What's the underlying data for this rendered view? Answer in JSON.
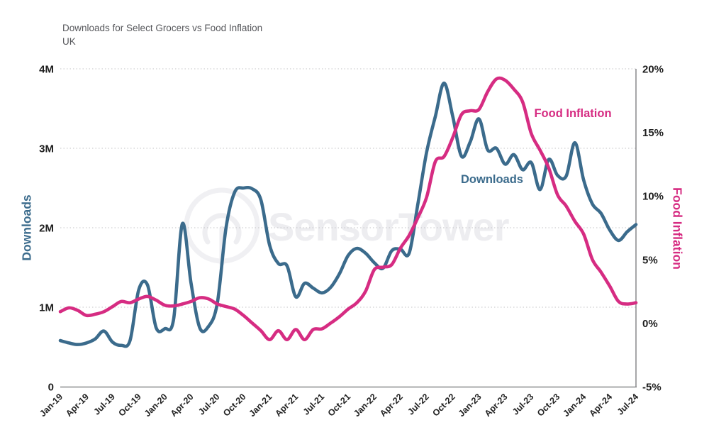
{
  "header": {
    "title": "Downloads for Select Grocers vs Food Inflation",
    "subtitle": "UK"
  },
  "watermark": {
    "text": "SensorTower",
    "logo": "circle-tower-icon"
  },
  "chart_data": {
    "type": "line",
    "x": [
      "Jan-19",
      "Feb-19",
      "Mar-19",
      "Apr-19",
      "May-19",
      "Jun-19",
      "Jul-19",
      "Aug-19",
      "Sep-19",
      "Oct-19",
      "Nov-19",
      "Dec-19",
      "Jan-20",
      "Feb-20",
      "Mar-20",
      "Apr-20",
      "May-20",
      "Jun-20",
      "Jul-20",
      "Aug-20",
      "Sep-20",
      "Oct-20",
      "Nov-20",
      "Dec-20",
      "Jan-21",
      "Feb-21",
      "Mar-21",
      "Apr-21",
      "May-21",
      "Jun-21",
      "Jul-21",
      "Aug-21",
      "Sep-21",
      "Oct-21",
      "Nov-21",
      "Dec-21",
      "Jan-22",
      "Feb-22",
      "Mar-22",
      "Apr-22",
      "May-22",
      "Jun-22",
      "Jul-22",
      "Aug-22",
      "Sep-22",
      "Oct-22",
      "Nov-22",
      "Dec-22",
      "Jan-23",
      "Feb-23",
      "Mar-23",
      "Apr-23",
      "May-23",
      "Jun-23",
      "Jul-23",
      "Aug-23",
      "Sep-23",
      "Oct-23",
      "Nov-23",
      "Dec-23",
      "Jan-24",
      "Feb-24",
      "Mar-24",
      "Apr-24",
      "May-24",
      "Jun-24",
      "Jul-24"
    ],
    "x_tick_every": 3,
    "series": [
      {
        "name": "Downloads",
        "axis": "left",
        "unit": "millions of downloads",
        "color": "#3b6b8c",
        "values": [
          0.58,
          0.55,
          0.53,
          0.55,
          0.6,
          0.7,
          0.56,
          0.52,
          0.58,
          1.22,
          1.28,
          0.74,
          0.73,
          0.85,
          2.05,
          1.3,
          0.74,
          0.76,
          1.05,
          2.0,
          2.45,
          2.5,
          2.49,
          2.35,
          1.78,
          1.55,
          1.52,
          1.13,
          1.3,
          1.24,
          1.18,
          1.25,
          1.42,
          1.65,
          1.74,
          1.68,
          1.56,
          1.49,
          1.71,
          1.73,
          1.68,
          2.3,
          2.95,
          3.4,
          3.82,
          3.4,
          2.9,
          3.08,
          3.37,
          2.98,
          3.0,
          2.8,
          2.92,
          2.73,
          2.82,
          2.48,
          2.86,
          2.66,
          2.65,
          3.07,
          2.6,
          2.3,
          2.18,
          1.97,
          1.84,
          1.95,
          2.04
        ]
      },
      {
        "name": "Food Inflation",
        "axis": "right",
        "unit": "percent",
        "color": "#d62c82",
        "values": [
          0.9,
          1.2,
          1.0,
          0.6,
          0.7,
          0.9,
          1.3,
          1.7,
          1.6,
          1.9,
          2.1,
          1.8,
          1.4,
          1.35,
          1.5,
          1.7,
          2.0,
          1.9,
          1.5,
          1.3,
          1.1,
          0.6,
          0.0,
          -0.6,
          -1.3,
          -0.6,
          -1.3,
          -0.5,
          -1.3,
          -0.5,
          -0.45,
          0.0,
          0.5,
          1.1,
          1.6,
          2.5,
          4.2,
          4.4,
          4.6,
          5.9,
          6.9,
          8.3,
          9.9,
          12.7,
          13.1,
          14.6,
          16.4,
          16.7,
          16.8,
          18.2,
          19.2,
          19.1,
          18.4,
          17.4,
          14.9,
          13.6,
          12.2,
          10.1,
          9.2,
          8.0,
          7.0,
          5.0,
          4.0,
          2.9,
          1.7,
          1.5,
          1.6
        ]
      }
    ],
    "left_axis": {
      "label": "Downloads",
      "tick_values": [
        0,
        1,
        2,
        3,
        4
      ],
      "tick_labels": [
        "0",
        "1M",
        "2M",
        "3M",
        "4M"
      ],
      "min": 0,
      "max": 4
    },
    "right_axis": {
      "label": "Food Inflation",
      "tick_values": [
        -5,
        0,
        5,
        10,
        15,
        20
      ],
      "tick_labels": [
        "-5%",
        "0%",
        "5%",
        "10%",
        "15%",
        "20%"
      ],
      "min": -5,
      "max": 20
    },
    "grid": {
      "horizontal_dotted_at_left_ticks": true,
      "vertical": false
    },
    "legend": {
      "type": "inline-annotations",
      "entries": [
        "Downloads",
        "Food Inflation"
      ]
    }
  }
}
